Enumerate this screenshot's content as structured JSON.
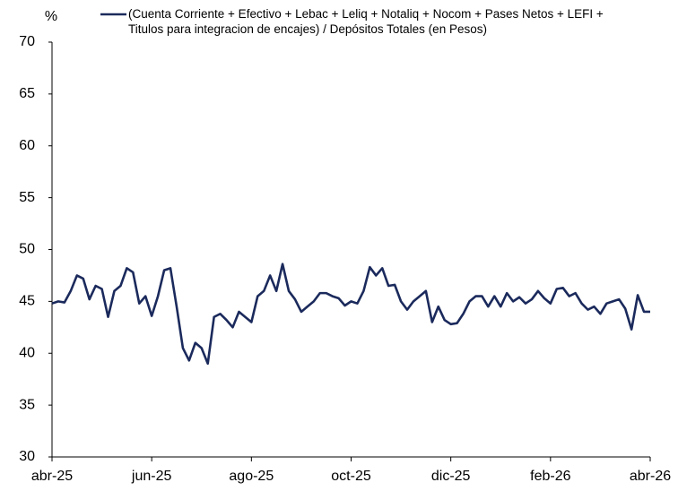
{
  "chart_data": {
    "type": "line",
    "y_label": "%",
    "categories": [
      "abr-25",
      null,
      null,
      null,
      null,
      null,
      null,
      null,
      null,
      null,
      null,
      null,
      null,
      null,
      null,
      null,
      "jun-25",
      null,
      null,
      null,
      null,
      null,
      null,
      null,
      null,
      null,
      null,
      null,
      null,
      null,
      null,
      null,
      "ago-25",
      null,
      null,
      null,
      null,
      null,
      null,
      null,
      null,
      null,
      null,
      null,
      null,
      null,
      null,
      null,
      "oct-25",
      null,
      null,
      null,
      null,
      null,
      null,
      null,
      null,
      null,
      null,
      null,
      null,
      null,
      null,
      null,
      "dic-25",
      null,
      null,
      null,
      null,
      null,
      null,
      null,
      null,
      null,
      null,
      null,
      null,
      null,
      null,
      null,
      "feb-26",
      null,
      null,
      null,
      null,
      null,
      null,
      null,
      null,
      null,
      null,
      null,
      null,
      null,
      null,
      null,
      "abr-26"
    ],
    "series": [
      {
        "name": "(Cuenta Corriente + Efectivo + Lebac + Leliq + Notaliq + Nocom + Pases Netos + LEFI + Titulos para integracion de encajes) / Depósitos Totales (en Pesos)",
        "color": "#1b2a5c",
        "values": [
          44.8,
          45.0,
          44.9,
          46.0,
          47.5,
          47.2,
          45.2,
          46.5,
          46.2,
          43.5,
          46.0,
          46.5,
          48.2,
          47.8,
          44.8,
          45.5,
          43.6,
          45.5,
          48.0,
          48.2,
          44.5,
          40.5,
          39.3,
          41.0,
          40.5,
          39.0,
          43.5,
          43.8,
          43.2,
          42.5,
          44.0,
          43.5,
          43.0,
          45.5,
          46.0,
          47.5,
          46.0,
          48.6,
          46.0,
          45.2,
          44.0,
          44.5,
          45.0,
          45.8,
          45.8,
          45.5,
          45.3,
          44.6,
          45.0,
          44.8,
          46.0,
          48.3,
          47.5,
          48.2,
          46.5,
          46.6,
          45.0,
          44.2,
          45.0,
          45.5,
          46.0,
          43.0,
          44.5,
          43.2,
          42.8,
          42.9,
          43.8,
          45.0,
          45.5,
          45.5,
          44.5,
          45.5,
          44.5,
          45.8,
          45.0,
          45.4,
          44.8,
          45.2,
          46.0,
          45.3,
          44.8,
          46.2,
          46.3,
          45.5,
          45.8,
          44.8,
          44.2,
          44.5,
          43.8,
          44.8,
          45.0,
          45.2,
          44.3,
          42.3,
          45.6,
          44.0,
          44.0
        ]
      }
    ],
    "ylim": [
      30,
      70
    ],
    "yticks": [
      30,
      35,
      40,
      45,
      50,
      55,
      60,
      65,
      70
    ],
    "grid": false
  }
}
